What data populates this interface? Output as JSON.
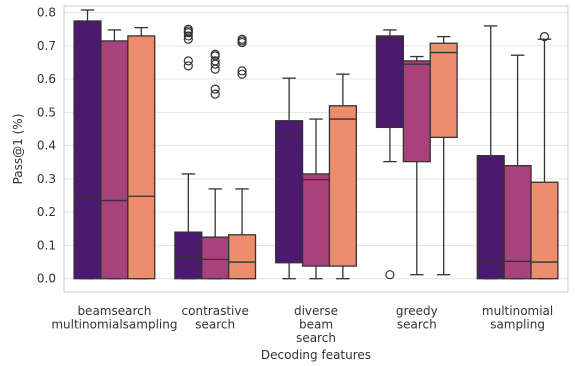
{
  "chart_data": {
    "type": "box",
    "xlabel": "Decoding features",
    "ylabel": "Pass@1 (%)",
    "ylim": [
      -0.04,
      0.82
    ],
    "yticks": [
      0.0,
      0.1,
      0.2,
      0.3,
      0.4,
      0.5,
      0.6,
      0.7,
      0.8
    ],
    "ytick_labels": [
      "0.0",
      "0.1",
      "0.2",
      "0.3",
      "0.4",
      "0.5",
      "0.6",
      "0.7",
      "0.8"
    ],
    "grid": true,
    "legend": "none",
    "series_colors": [
      "#4b1a6e",
      "#a8417c",
      "#ec8d6e"
    ],
    "categories": [
      [
        "beamsearch",
        "multinomialsampling"
      ],
      [
        "contrastive",
        "search"
      ],
      [
        "diverse",
        "beam",
        "search"
      ],
      [
        "greedy",
        "search"
      ],
      [
        "multinomial",
        "sampling"
      ]
    ],
    "boxes": [
      [
        {
          "min": 0.0,
          "q1": 0.0,
          "median": 0.245,
          "q3": 0.775,
          "max": 0.808,
          "outliers": []
        },
        {
          "min": 0.0,
          "q1": 0.0,
          "median": 0.235,
          "q3": 0.715,
          "max": 0.748,
          "outliers": []
        },
        {
          "min": 0.0,
          "q1": 0.0,
          "median": 0.248,
          "q3": 0.73,
          "max": 0.755,
          "outliers": []
        }
      ],
      [
        {
          "min": 0.0,
          "q1": 0.0,
          "median": 0.065,
          "q3": 0.14,
          "max": 0.315,
          "outliers": [
            0.64,
            0.655,
            0.72,
            0.73,
            0.74,
            0.745,
            0.75
          ]
        },
        {
          "min": 0.0,
          "q1": 0.0,
          "median": 0.058,
          "q3": 0.125,
          "max": 0.27,
          "outliers": [
            0.555,
            0.57,
            0.63,
            0.645,
            0.655,
            0.67,
            0.675
          ]
        },
        {
          "min": 0.0,
          "q1": 0.0,
          "median": 0.05,
          "q3": 0.132,
          "max": 0.27,
          "outliers": [
            0.615,
            0.625,
            0.71,
            0.715,
            0.72
          ]
        }
      ],
      [
        {
          "min": 0.0,
          "q1": 0.048,
          "median": 0.43,
          "q3": 0.475,
          "max": 0.603,
          "outliers": []
        },
        {
          "min": 0.0,
          "q1": 0.038,
          "median": 0.298,
          "q3": 0.315,
          "max": 0.48,
          "outliers": []
        },
        {
          "min": 0.0,
          "q1": 0.038,
          "median": 0.48,
          "q3": 0.52,
          "max": 0.615,
          "outliers": []
        }
      ],
      [
        {
          "min": 0.352,
          "q1": 0.455,
          "median": 0.72,
          "q3": 0.73,
          "max": 0.748,
          "outliers": [
            0.012
          ]
        },
        {
          "min": 0.012,
          "q1": 0.352,
          "median": 0.645,
          "q3": 0.655,
          "max": 0.668,
          "outliers": []
        },
        {
          "min": 0.012,
          "q1": 0.425,
          "median": 0.68,
          "q3": 0.708,
          "max": 0.728,
          "outliers": []
        }
      ],
      [
        {
          "min": 0.0,
          "q1": 0.0,
          "median": 0.052,
          "q3": 0.37,
          "max": 0.76,
          "outliers": []
        },
        {
          "min": 0.0,
          "q1": 0.0,
          "median": 0.052,
          "q3": 0.34,
          "max": 0.672,
          "outliers": []
        },
        {
          "min": 0.0,
          "q1": 0.0,
          "median": 0.05,
          "q3": 0.29,
          "max": 0.72,
          "outliers": [
            0.728
          ]
        }
      ]
    ]
  }
}
